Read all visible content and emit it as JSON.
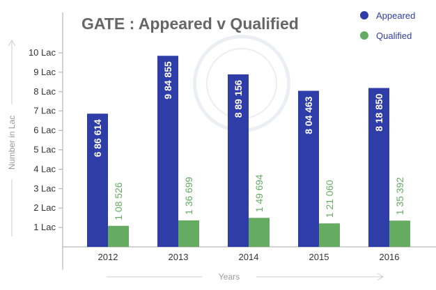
{
  "chart_data": {
    "type": "bar",
    "title": "GATE : Appeared v Qualified",
    "xlabel": "Years",
    "ylabel": "Number in Lac",
    "ylim": [
      0,
      10.5
    ],
    "yticks": [
      1,
      2,
      3,
      4,
      5,
      6,
      7,
      8,
      9,
      10
    ],
    "ytick_labels": [
      "1 Lac",
      "2 Lac",
      "3 Lac",
      "4 Lac",
      "5 Lac",
      "6 Lac",
      "7 Lac",
      "8 Lac",
      "9 Lac",
      "10 Lac"
    ],
    "categories": [
      "2012",
      "2013",
      "2014",
      "2015",
      "2016"
    ],
    "series": [
      {
        "name": "Appeared",
        "color": "#2f3da8",
        "values": [
          6.86614,
          9.84855,
          8.89156,
          8.04463,
          8.1885
        ],
        "labels": [
          "6 86 614",
          "9 84 855",
          "8 89 156",
          "8 04 463",
          "8 18 850"
        ]
      },
      {
        "name": "Qualified",
        "color": "#65ac62",
        "values": [
          1.08526,
          1.36699,
          1.49694,
          1.2106,
          1.35392
        ],
        "labels": [
          "1 08 526",
          "1 36 699",
          "1 49 694",
          "1 21 060",
          "1 35 392"
        ]
      }
    ],
    "legend": "top-right",
    "grid": false
  }
}
